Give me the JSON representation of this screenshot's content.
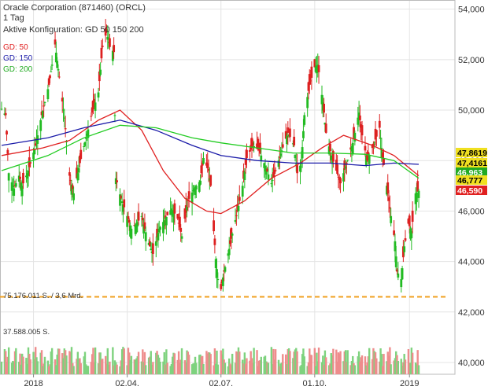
{
  "header": {
    "title": "Oracle Corporation (871460) (ORCL)",
    "interval": "1 Tag",
    "config": "Aktive Konfiguration: GD 50 150 200"
  },
  "legend": [
    {
      "label": "GD: 50",
      "color": "#e02020"
    },
    {
      "label": "GD: 150",
      "color": "#1a1aa8"
    },
    {
      "label": "GD: 200",
      "color": "#22cc22"
    }
  ],
  "volume_labels": {
    "top": "75.176.011 S. / 3,6 Mrd.",
    "mid": "37.588.005 S."
  },
  "chart_data": {
    "type": "candlestick",
    "ylim": [
      39500,
      54300
    ],
    "y_ticks": [
      {
        "value": 54000,
        "label": "54,000"
      },
      {
        "value": 52000,
        "label": "52,000"
      },
      {
        "value": 50000,
        "label": "50,000"
      },
      {
        "value": 48000,
        "label": "48,000"
      },
      {
        "value": 46000,
        "label": "46,000"
      },
      {
        "value": 44000,
        "label": "44,000"
      },
      {
        "value": 42000,
        "label": "42,000"
      },
      {
        "value": 40000,
        "label": "40,000"
      }
    ],
    "x_range": [
      "2017-12-01",
      "2019-01-10"
    ],
    "x_ticks": [
      {
        "date": "2018-01-01",
        "label": "2018"
      },
      {
        "date": "2018-04-02",
        "label": "02.04."
      },
      {
        "date": "2018-07-02",
        "label": "02.07."
      },
      {
        "date": "2018-10-01",
        "label": "01.10."
      },
      {
        "date": "2019-01-01",
        "label": "2019"
      }
    ],
    "support_line": 42600,
    "price_points": [
      [
        "2017-12-01",
        50050
      ],
      [
        "2017-12-05",
        49800
      ],
      [
        "2017-12-08",
        47500
      ],
      [
        "2017-12-13",
        46900
      ],
      [
        "2017-12-18",
        47400
      ],
      [
        "2017-12-21",
        47000
      ],
      [
        "2017-12-27",
        47600
      ],
      [
        "2018-01-03",
        48600
      ],
      [
        "2018-01-09",
        49800
      ],
      [
        "2018-01-16",
        51000
      ],
      [
        "2018-01-22",
        52600
      ],
      [
        "2018-01-26",
        51300
      ],
      [
        "2018-01-31",
        49700
      ],
      [
        "2018-02-05",
        47400
      ],
      [
        "2018-02-09",
        46700
      ],
      [
        "2018-02-15",
        47900
      ],
      [
        "2018-02-21",
        48900
      ],
      [
        "2018-02-27",
        49900
      ],
      [
        "2018-03-05",
        50700
      ],
      [
        "2018-03-09",
        52500
      ],
      [
        "2018-03-13",
        53100
      ],
      [
        "2018-03-16",
        52500
      ],
      [
        "2018-03-20",
        52300
      ],
      [
        "2018-03-22",
        47300
      ],
      [
        "2018-03-27",
        46500
      ],
      [
        "2018-04-02",
        45800
      ],
      [
        "2018-04-06",
        45300
      ],
      [
        "2018-04-11",
        45500
      ],
      [
        "2018-04-16",
        45800
      ],
      [
        "2018-04-19",
        45300
      ],
      [
        "2018-04-24",
        44600
      ],
      [
        "2018-04-27",
        44300
      ],
      [
        "2018-05-03",
        45300
      ],
      [
        "2018-05-09",
        45700
      ],
      [
        "2018-05-15",
        46100
      ],
      [
        "2018-05-21",
        45700
      ],
      [
        "2018-05-25",
        45000
      ],
      [
        "2018-05-31",
        46400
      ],
      [
        "2018-06-06",
        46900
      ],
      [
        "2018-06-12",
        47200
      ],
      [
        "2018-06-15",
        48100
      ],
      [
        "2018-06-20",
        47600
      ],
      [
        "2018-06-22",
        47000
      ],
      [
        "2018-06-25",
        45200
      ],
      [
        "2018-06-27",
        44100
      ],
      [
        "2018-06-29",
        43300
      ],
      [
        "2018-07-02",
        42900
      ],
      [
        "2018-07-05",
        43600
      ],
      [
        "2018-07-10",
        44500
      ],
      [
        "2018-07-13",
        45100
      ],
      [
        "2018-07-18",
        46000
      ],
      [
        "2018-07-23",
        47000
      ],
      [
        "2018-07-27",
        48100
      ],
      [
        "2018-08-02",
        48600
      ],
      [
        "2018-08-08",
        48400
      ],
      [
        "2018-08-14",
        47800
      ],
      [
        "2018-08-20",
        47100
      ],
      [
        "2018-08-24",
        47600
      ],
      [
        "2018-08-30",
        48400
      ],
      [
        "2018-09-05",
        49100
      ],
      [
        "2018-09-11",
        48600
      ],
      [
        "2018-09-14",
        47500
      ],
      [
        "2018-09-18",
        47900
      ],
      [
        "2018-09-21",
        49800
      ],
      [
        "2018-09-26",
        51000
      ],
      [
        "2018-10-01",
        51700
      ],
      [
        "2018-10-04",
        51800
      ],
      [
        "2018-10-09",
        50300
      ],
      [
        "2018-10-12",
        49100
      ],
      [
        "2018-10-17",
        48200
      ],
      [
        "2018-10-22",
        47600
      ],
      [
        "2018-10-26",
        47100
      ],
      [
        "2018-11-01",
        47900
      ],
      [
        "2018-11-07",
        48700
      ],
      [
        "2018-11-13",
        49900
      ],
      [
        "2018-11-16",
        49000
      ],
      [
        "2018-11-21",
        48000
      ],
      [
        "2018-11-27",
        48600
      ],
      [
        "2018-12-03",
        49300
      ],
      [
        "2018-12-06",
        48100
      ],
      [
        "2018-12-10",
        47000
      ],
      [
        "2018-12-14",
        45800
      ],
      [
        "2018-12-18",
        44800
      ],
      [
        "2018-12-20",
        43600
      ],
      [
        "2018-12-24",
        43300
      ],
      [
        "2018-12-27",
        44600
      ],
      [
        "2018-12-31",
        45500
      ],
      [
        "2019-01-03",
        45200
      ],
      [
        "2019-01-07",
        46700
      ],
      [
        "2019-01-10",
        46800
      ]
    ],
    "series": [
      {
        "name": "GD: 50",
        "color": "#e02020",
        "points": [
          [
            "2017-12-01",
            48200
          ],
          [
            "2018-01-10",
            48500
          ],
          [
            "2018-02-05",
            48800
          ],
          [
            "2018-03-05",
            49600
          ],
          [
            "2018-03-26",
            50000
          ],
          [
            "2018-04-16",
            49200
          ],
          [
            "2018-05-07",
            47600
          ],
          [
            "2018-05-28",
            46500
          ],
          [
            "2018-06-18",
            46000
          ],
          [
            "2018-07-02",
            45900
          ],
          [
            "2018-07-25",
            46400
          ],
          [
            "2018-08-20",
            47300
          ],
          [
            "2018-09-17",
            47900
          ],
          [
            "2018-10-08",
            48500
          ],
          [
            "2018-10-29",
            49000
          ],
          [
            "2018-11-26",
            48600
          ],
          [
            "2018-12-17",
            48200
          ],
          [
            "2019-01-10",
            47400
          ]
        ]
      },
      {
        "name": "GD: 150",
        "color": "#1a1aa8",
        "points": [
          [
            "2017-12-01",
            48600
          ],
          [
            "2018-01-15",
            48900
          ],
          [
            "2018-02-19",
            49300
          ],
          [
            "2018-03-26",
            49600
          ],
          [
            "2018-04-30",
            49200
          ],
          [
            "2018-06-04",
            48600
          ],
          [
            "2018-07-02",
            48200
          ],
          [
            "2018-08-06",
            48000
          ],
          [
            "2018-09-10",
            47900
          ],
          [
            "2018-10-15",
            47900
          ],
          [
            "2018-11-19",
            47800
          ],
          [
            "2018-12-17",
            47900
          ],
          [
            "2019-01-10",
            47850
          ]
        ]
      },
      {
        "name": "GD: 200",
        "color": "#22cc22",
        "points": [
          [
            "2017-12-01",
            47600
          ],
          [
            "2018-01-15",
            48200
          ],
          [
            "2018-02-19",
            48900
          ],
          [
            "2018-03-26",
            49400
          ],
          [
            "2018-04-30",
            49300
          ],
          [
            "2018-06-04",
            48900
          ],
          [
            "2018-07-02",
            48700
          ],
          [
            "2018-08-06",
            48500
          ],
          [
            "2018-09-10",
            48300
          ],
          [
            "2018-10-15",
            48300
          ],
          [
            "2018-11-19",
            48250
          ],
          [
            "2018-12-17",
            48000
          ],
          [
            "2019-01-10",
            47300
          ]
        ]
      }
    ],
    "price_tags": [
      {
        "value": 47860,
        "label": "47,8619",
        "bg": "#f0e020",
        "fg": "#000000"
      },
      {
        "value": 47420,
        "label": "47,4161",
        "bg": "#f0e020",
        "fg": "#000000"
      },
      {
        "value": 46960,
        "label": "46,963",
        "bg": "#22aa22",
        "fg": "#ffffff"
      },
      {
        "value": 46780,
        "label": "46,777",
        "bg": "#f0e020",
        "fg": "#000000"
      },
      {
        "value": 46590,
        "label": "46,590",
        "bg": "#e02020",
        "fg": "#ffffff"
      }
    ]
  }
}
